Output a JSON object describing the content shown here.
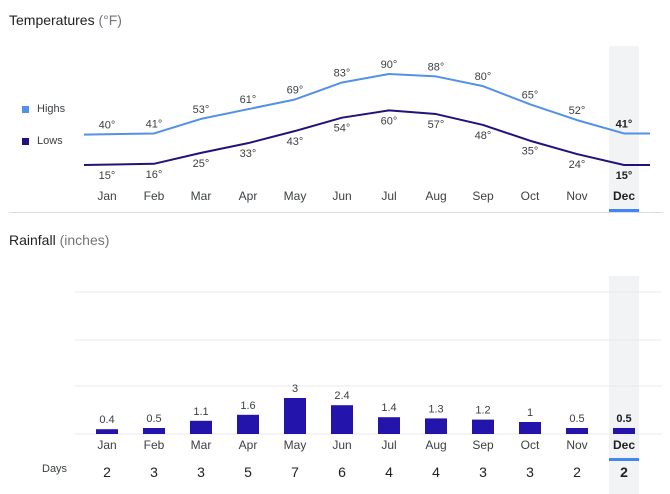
{
  "temperatures": {
    "title": "Temperatures",
    "unit": "(°F)",
    "legend": {
      "highs": "Highs",
      "lows": "Lows"
    },
    "colors": {
      "highs": "#5391e8",
      "lows": "#24127a"
    }
  },
  "rainfall": {
    "title": "Rainfall",
    "unit": "(inches)",
    "bar_color": "#2315ab"
  },
  "days_label": "Days",
  "selected_month": "Dec",
  "accent": "#4285f4",
  "chart_data": [
    {
      "type": "line",
      "title": "Temperatures (°F)",
      "categories": [
        "Jan",
        "Feb",
        "Mar",
        "Apr",
        "May",
        "Jun",
        "Jul",
        "Aug",
        "Sep",
        "Oct",
        "Nov",
        "Dec"
      ],
      "series": [
        {
          "name": "Highs",
          "values": [
            40,
            41,
            53,
            61,
            69,
            83,
            90,
            88,
            80,
            65,
            52,
            41
          ],
          "labels": [
            "40°",
            "41°",
            "53°",
            "61°",
            "69°",
            "83°",
            "90°",
            "88°",
            "80°",
            "65°",
            "52°",
            "41°"
          ]
        },
        {
          "name": "Lows",
          "values": [
            15,
            16,
            25,
            33,
            43,
            54,
            60,
            57,
            48,
            35,
            24,
            15
          ],
          "labels": [
            "15°",
            "16°",
            "25°",
            "33°",
            "43°",
            "54°",
            "60°",
            "57°",
            "48°",
            "35°",
            "24°",
            "15°"
          ]
        }
      ],
      "legend": "left"
    },
    {
      "type": "bar",
      "title": "Rainfall (inches)",
      "categories": [
        "Jan",
        "Feb",
        "Mar",
        "Apr",
        "May",
        "Jun",
        "Jul",
        "Aug",
        "Sep",
        "Oct",
        "Nov",
        "Dec"
      ],
      "values": [
        0.4,
        0.5,
        1.1,
        1.6,
        3,
        2.4,
        1.4,
        1.3,
        1.2,
        1,
        0.5,
        0.5
      ],
      "labels": [
        "0.4",
        "0.5",
        "1.1",
        "1.6",
        "3",
        "2.4",
        "1.4",
        "1.3",
        "1.2",
        "1",
        "0.5",
        "0.5"
      ],
      "ylim": [
        0,
        10
      ],
      "grid": true
    },
    {
      "type": "table",
      "title": "Days",
      "categories": [
        "Jan",
        "Feb",
        "Mar",
        "Apr",
        "May",
        "Jun",
        "Jul",
        "Aug",
        "Sep",
        "Oct",
        "Nov",
        "Dec"
      ],
      "values": [
        2,
        3,
        3,
        5,
        7,
        6,
        4,
        4,
        3,
        3,
        2,
        2
      ],
      "labels": [
        "2",
        "3",
        "3",
        "5",
        "7",
        "6",
        "4",
        "4",
        "3",
        "3",
        "2",
        "2"
      ]
    }
  ]
}
